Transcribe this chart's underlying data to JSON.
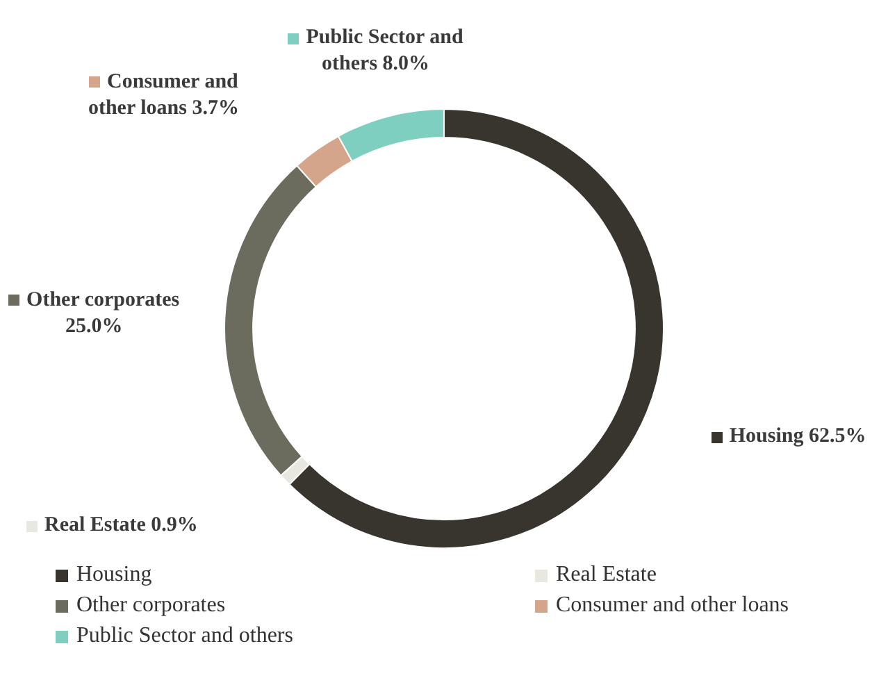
{
  "chart_data": {
    "type": "donut",
    "categories": [
      "Housing",
      "Real Estate",
      "Other corporates",
      "Consumer and other loans",
      "Public Sector and others"
    ],
    "values": [
      62.5,
      0.9,
      25.0,
      3.7,
      8.0
    ],
    "colors": [
      "#38352f",
      "#e8e8e0",
      "#6b6b5e",
      "#d4a58a",
      "#7ecfc0"
    ],
    "value_labels": [
      "62.5%",
      "0.9%",
      "25.0%",
      "3.7%",
      "8.0%"
    ],
    "legend": "bottom"
  }
}
